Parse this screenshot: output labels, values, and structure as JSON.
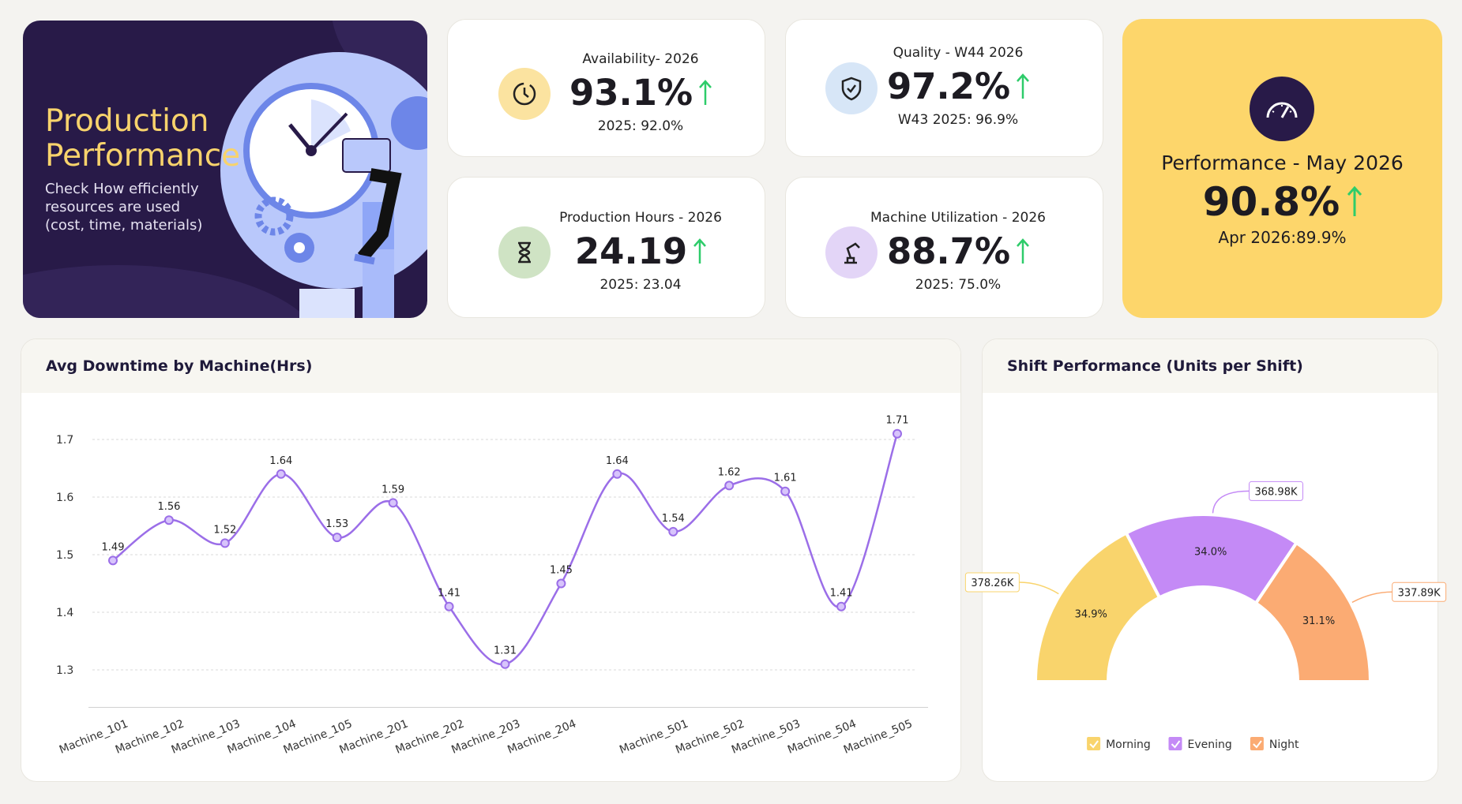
{
  "banner": {
    "title": "Production Performance",
    "subtitle": "Check How efficiently resources are used (cost, time, materials)"
  },
  "kpis": [
    {
      "label": "Availability- 2026",
      "value": "93.1%",
      "compare": "2025: 92.0%"
    },
    {
      "label": "Quality - W44 2026",
      "value": "97.2%",
      "compare": "W43 2025: 96.9%"
    },
    {
      "label": "Production Hours - 2026",
      "value": "24.19",
      "compare": "2025: 23.04"
    },
    {
      "label": "Machine Utilization - 2026",
      "value": "88.7%",
      "compare": "2025: 75.0%"
    }
  ],
  "featured_kpi": {
    "label": "Performance - May 2026",
    "value": "90.8%",
    "compare": "Apr 2026:89.9%"
  },
  "chart_data": [
    {
      "type": "line",
      "title": "Avg Downtime by Machine(Hrs)",
      "categories": [
        "Machine_101",
        "Machine_102",
        "Machine_103",
        "Machine_104",
        "Machine_105",
        "Machine_201",
        "Machine_202",
        "Machine_203",
        "Machine_204",
        null,
        "Machine_501",
        "Machine_502",
        "Machine_503",
        "Machine_504",
        "Machine_505"
      ],
      "values": [
        1.49,
        1.56,
        1.52,
        1.64,
        1.53,
        1.59,
        1.41,
        1.31,
        1.45,
        1.64,
        1.54,
        1.62,
        1.61,
        1.41,
        1.71
      ],
      "color": "#9b6ee8",
      "ylim": [
        1.235,
        1.75
      ],
      "yticks": [
        1.3,
        1.4,
        1.5,
        1.6,
        1.7
      ],
      "grid": true
    },
    {
      "type": "pie",
      "title": "Shift Performance (Units per Shift)",
      "semicircle": true,
      "categories": [
        "Morning",
        "Evening",
        "Night"
      ],
      "values": [
        378260,
        368980,
        337890
      ],
      "value_labels": [
        "378.26K",
        "368.98K",
        "337.89K"
      ],
      "percent_labels": [
        "34.9%",
        "34.0%",
        "31.1%"
      ],
      "colors": [
        "#f9d46c",
        "#c48af6",
        "#fbab73"
      ],
      "legend": "bottom"
    }
  ]
}
